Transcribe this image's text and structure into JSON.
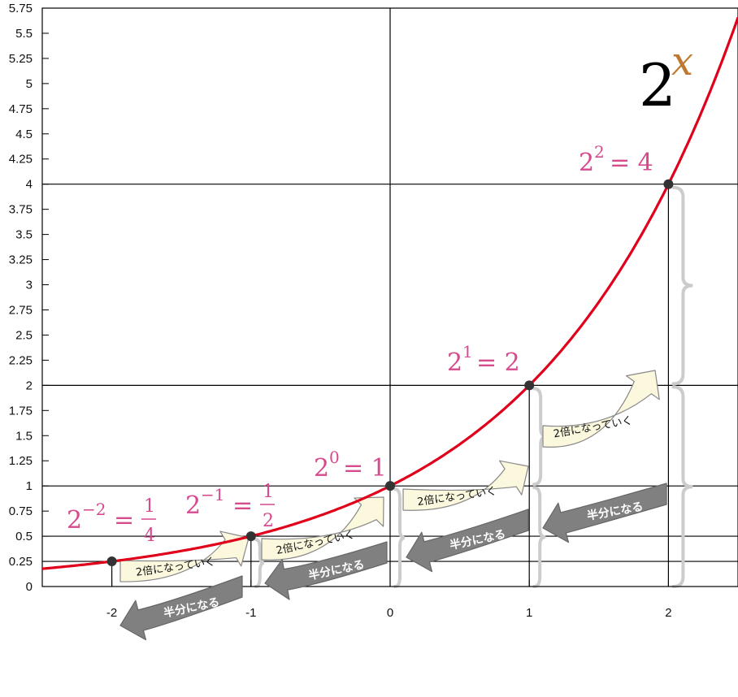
{
  "chart_data": {
    "type": "line",
    "function": "2^x",
    "title": "",
    "formula": {
      "base": "2",
      "exponent": "x"
    },
    "xlabel": "",
    "ylabel": "",
    "xlim": [
      -2.5,
      2.5
    ],
    "ylim": [
      0,
      5.75
    ],
    "x_ticks": [
      "-2",
      "-1",
      "0",
      "1",
      "2"
    ],
    "y_ticks": [
      "0",
      "0.25",
      "0.5",
      "0.75",
      "1",
      "1.25",
      "1.5",
      "1.75",
      "2",
      "2.25",
      "2.5",
      "2.75",
      "3",
      "3.25",
      "3.5",
      "3.75",
      "4",
      "4.25",
      "4.5",
      "4.75",
      "5",
      "5.25",
      "5.5",
      "5.75"
    ],
    "grid_y": [
      0.25,
      0.5,
      1,
      2,
      4
    ],
    "grid_x": [
      0
    ],
    "points": [
      {
        "x": -2,
        "y": 0.25
      },
      {
        "x": -1,
        "y": 0.5
      },
      {
        "x": 0,
        "y": 1
      },
      {
        "x": 1,
        "y": 2
      },
      {
        "x": 2,
        "y": 4
      }
    ],
    "annotations": {
      "p_neg2": {
        "base": "2",
        "exp": "−2",
        "eq": "=",
        "num": "1",
        "den": "4"
      },
      "p_neg1": {
        "base": "2",
        "exp": "−1",
        "eq": "=",
        "num": "1",
        "den": "2"
      },
      "p_0": {
        "base": "2",
        "exp": "0",
        "eq": "= 1"
      },
      "p_1": {
        "base": "2",
        "exp": "1",
        "eq": "= 2"
      },
      "p_2": {
        "base": "2",
        "exp": "2",
        "eq": "= 4"
      }
    },
    "double_label": "2倍になっていく",
    "half_label": "半分になる",
    "colors": {
      "curve": "#e0001b",
      "point": "#333333",
      "equation": "#d64a8e",
      "exponent": "#c07830",
      "double_arrow_fill": "#fbf8dd",
      "half_arrow_fill": "#808080",
      "brace": "#cccccc"
    }
  }
}
